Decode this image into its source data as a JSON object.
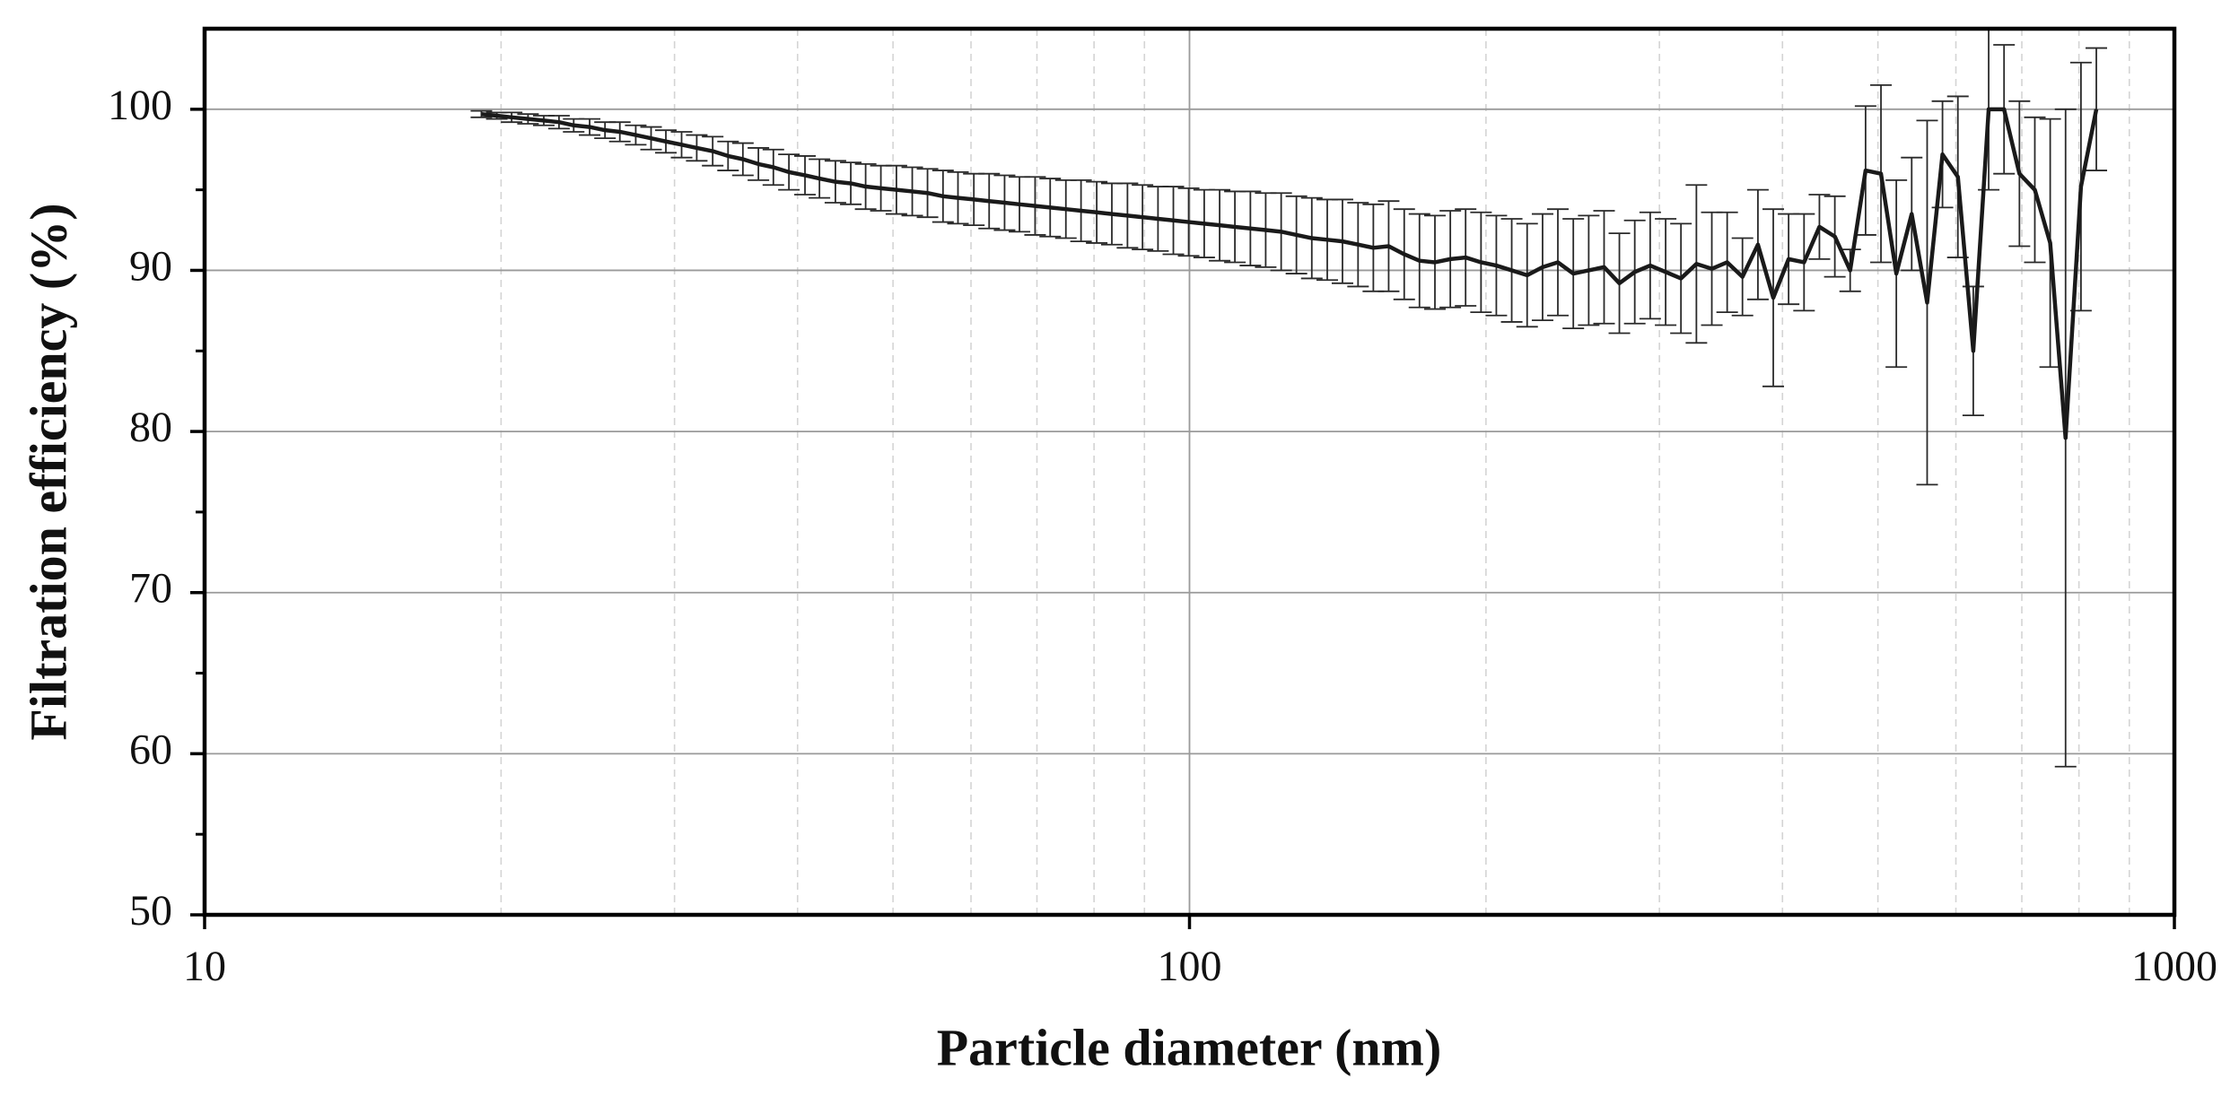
{
  "chart_data": {
    "type": "line",
    "xlabel": "Particle diameter (nm)",
    "ylabel": "Filtration efficiency (%)",
    "xscale": "log",
    "xlim": [
      10,
      1000
    ],
    "xticks": [
      10,
      100,
      1000
    ],
    "xminorticks": [
      20,
      30,
      40,
      50,
      60,
      70,
      80,
      90,
      200,
      300,
      400,
      500,
      600,
      700,
      800,
      900
    ],
    "ylim": [
      50,
      105
    ],
    "yticks": [
      50,
      60,
      70,
      80,
      90,
      100
    ],
    "yminorticks": [
      55,
      65,
      75,
      85,
      95
    ],
    "grid": true,
    "x": [
      19.1,
      19.8,
      20.5,
      21.3,
      22.1,
      22.9,
      23.7,
      24.6,
      25.5,
      26.4,
      27.4,
      28.4,
      29.4,
      30.5,
      31.6,
      32.8,
      34.0,
      35.2,
      36.5,
      37.8,
      39.2,
      40.7,
      42.1,
      43.7,
      45.3,
      46.9,
      48.6,
      50.4,
      52.3,
      54.2,
      56.2,
      58.2,
      60.4,
      62.6,
      64.9,
      67.2,
      69.7,
      72.2,
      74.9,
      77.6,
      80.5,
      83.4,
      86.5,
      89.6,
      92.9,
      96.3,
      99.8,
      103.5,
      107.3,
      111.2,
      115.3,
      119.5,
      123.9,
      128.4,
      133.1,
      138.0,
      143.0,
      148.3,
      153.7,
      159.3,
      165.2,
      171.2,
      177.5,
      184.0,
      190.7,
      197.7,
      204.9,
      212.4,
      220.2,
      228.3,
      236.6,
      245.3,
      254.3,
      263.6,
      273.2,
      283.2,
      293.6,
      304.4,
      315.5,
      327.1,
      339.1,
      351.5,
      364.3,
      377.7,
      391.5,
      405.8,
      420.7,
      436.1,
      452.1,
      468.6,
      485.8,
      503.6,
      522.0,
      541.1,
      561.0,
      581.5,
      602.8,
      624.9,
      647.8,
      671.5,
      696.1,
      721.6,
      748.0,
      775.4,
      803.8,
      833.2
    ],
    "series": [
      {
        "color": "#1a1a1a",
        "values": [
          99.7,
          99.6,
          99.5,
          99.4,
          99.3,
          99.2,
          99.0,
          98.9,
          98.7,
          98.6,
          98.4,
          98.2,
          98.0,
          97.8,
          97.6,
          97.4,
          97.1,
          96.9,
          96.6,
          96.4,
          96.1,
          95.9,
          95.7,
          95.5,
          95.4,
          95.2,
          95.1,
          95.0,
          94.9,
          94.8,
          94.6,
          94.5,
          94.4,
          94.3,
          94.2,
          94.1,
          94.0,
          93.9,
          93.8,
          93.7,
          93.6,
          93.5,
          93.4,
          93.3,
          93.2,
          93.1,
          93.0,
          92.9,
          92.8,
          92.7,
          92.6,
          92.5,
          92.4,
          92.2,
          92.0,
          91.9,
          91.8,
          91.6,
          91.4,
          91.5,
          91.0,
          90.6,
          90.5,
          90.7,
          90.8,
          90.5,
          90.3,
          90.0,
          89.7,
          90.2,
          90.5,
          89.8,
          90.0,
          90.2,
          89.2,
          89.9,
          90.3,
          89.9,
          89.5,
          90.4,
          90.1,
          90.5,
          89.6,
          91.6,
          88.3,
          90.7,
          90.5,
          92.7,
          92.1,
          90.0,
          96.2,
          96.0,
          89.8,
          93.5,
          88.0,
          97.2,
          95.8,
          85.0,
          100,
          100,
          96,
          95,
          91.7,
          79.6,
          95.2,
          100
        ],
        "errors": [
          0.2,
          0.2,
          0.3,
          0.3,
          0.3,
          0.4,
          0.4,
          0.5,
          0.5,
          0.6,
          0.6,
          0.7,
          0.7,
          0.8,
          0.8,
          0.9,
          0.9,
          1.0,
          1.0,
          1.1,
          1.1,
          1.2,
          1.2,
          1.3,
          1.3,
          1.4,
          1.4,
          1.5,
          1.5,
          1.5,
          1.6,
          1.6,
          1.6,
          1.7,
          1.7,
          1.7,
          1.8,
          1.8,
          1.8,
          1.9,
          1.9,
          1.9,
          2.0,
          2.0,
          2.0,
          2.1,
          2.1,
          2.1,
          2.2,
          2.2,
          2.3,
          2.3,
          2.4,
          2.4,
          2.5,
          2.5,
          2.6,
          2.6,
          2.7,
          2.8,
          2.8,
          2.9,
          2.9,
          3.0,
          3.0,
          3.1,
          3.1,
          3.2,
          3.2,
          3.3,
          3.3,
          3.4,
          3.4,
          3.5,
          3.1,
          3.2,
          3.3,
          3.3,
          3.4,
          4.9,
          3.5,
          3.1,
          2.4,
          3.4,
          5.5,
          2.8,
          3.0,
          2.0,
          2.5,
          1.3,
          4.0,
          5.5,
          5.8,
          3.5,
          11.3,
          3.3,
          5.0,
          4.0,
          5.0,
          4.0,
          4.5,
          4.5,
          7.7,
          20.4,
          7.7,
          3.8
        ]
      }
    ]
  }
}
